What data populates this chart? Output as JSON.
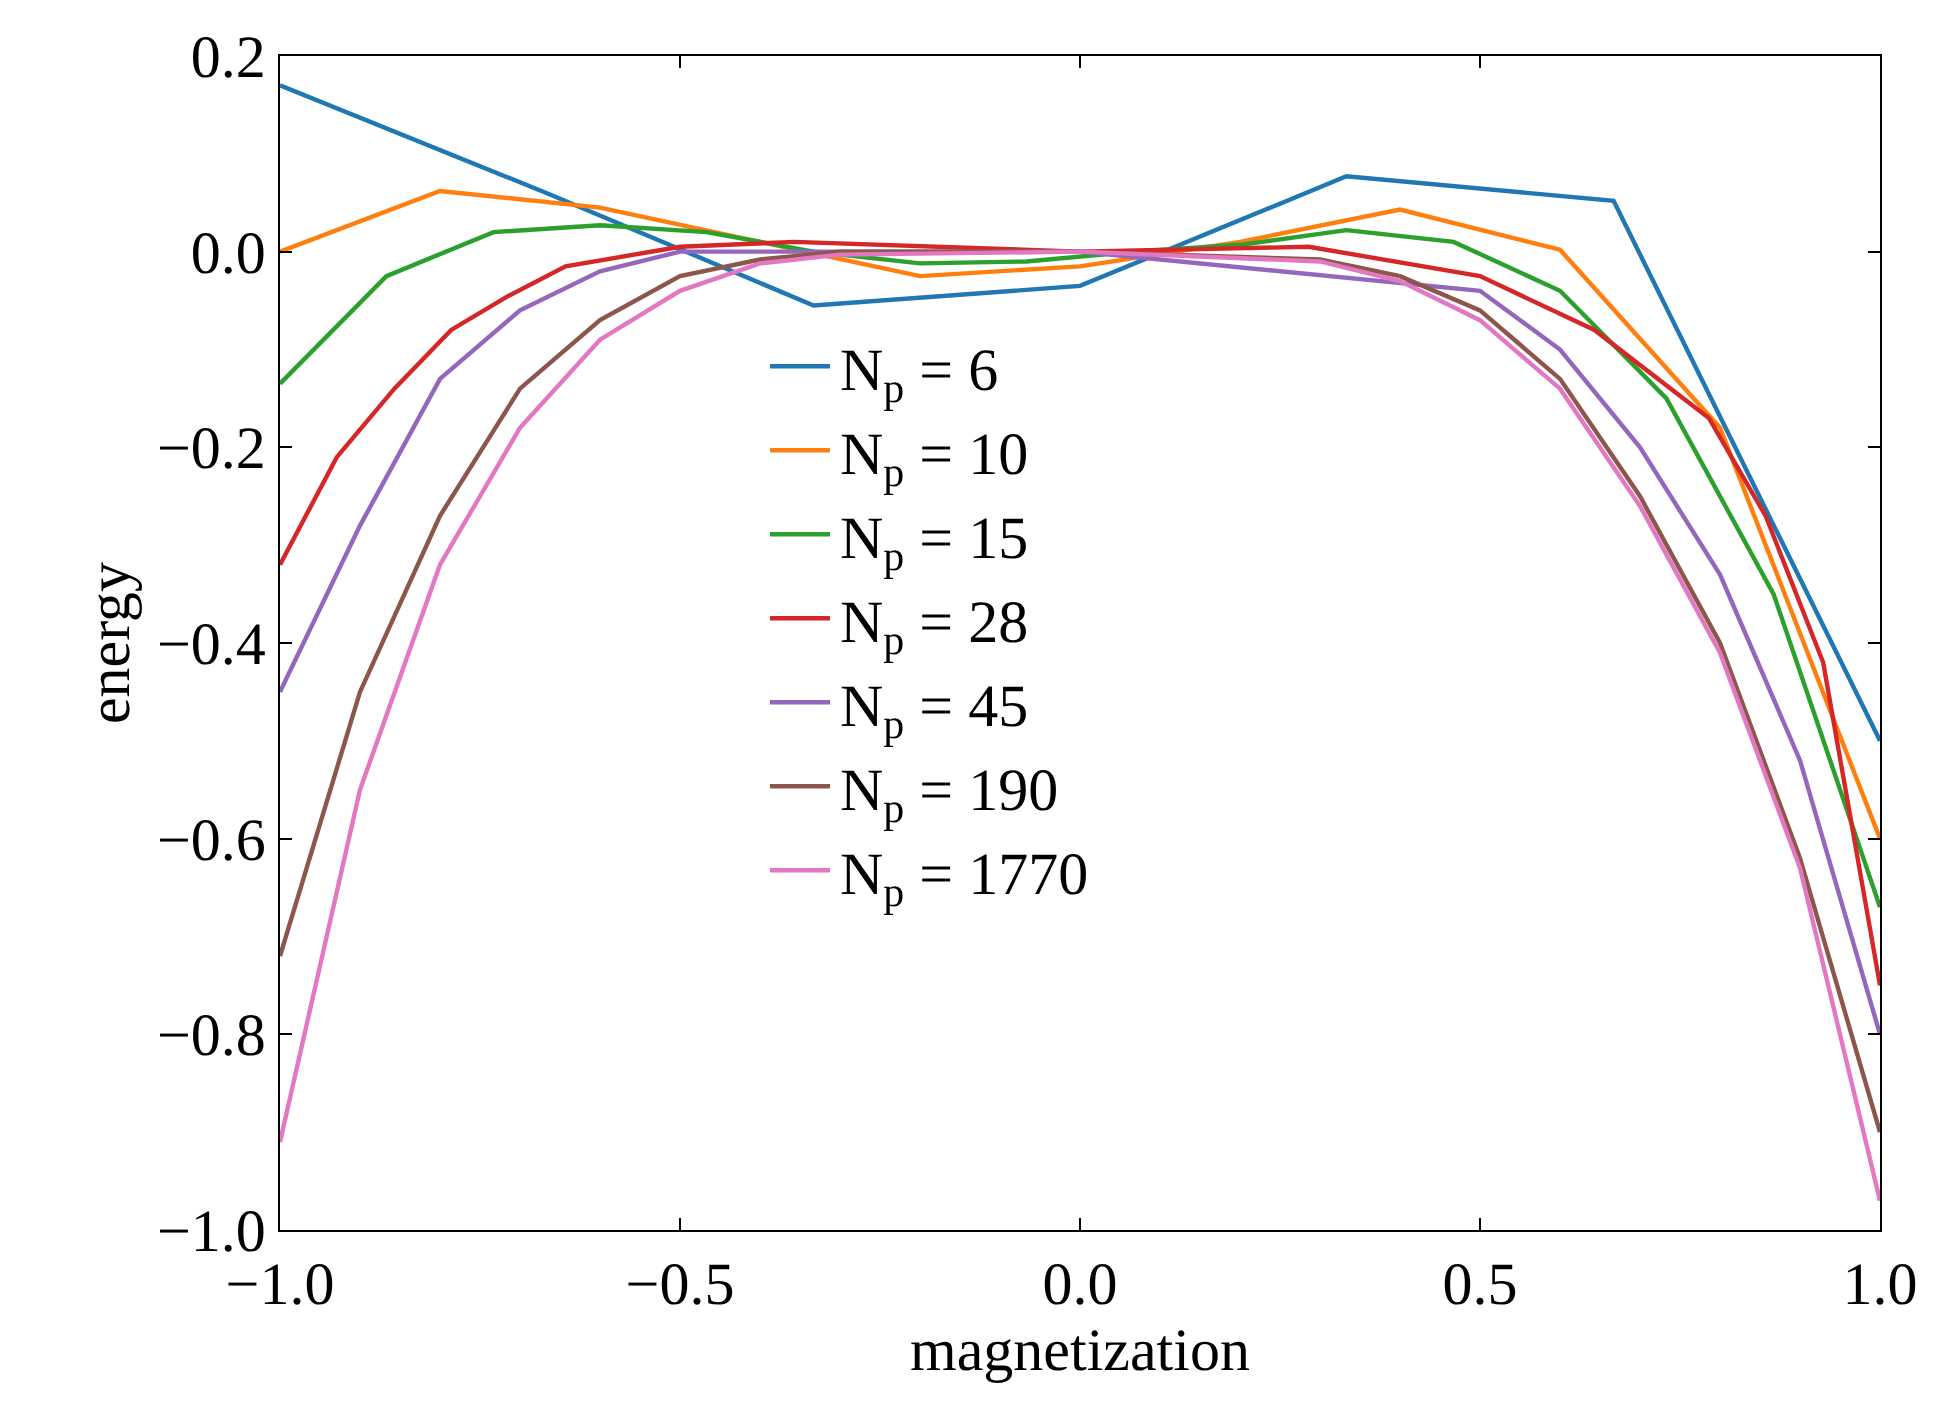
{
  "chart_data": {
    "type": "line",
    "xlabel": "magnetization",
    "ylabel": "energy",
    "xlim": [
      -1.0,
      1.0
    ],
    "ylim": [
      -1.0,
      0.2
    ],
    "xticks": [
      {
        "value": -1.0,
        "label": "−1.0"
      },
      {
        "value": -0.5,
        "label": "−0.5"
      },
      {
        "value": 0.0,
        "label": "0.0"
      },
      {
        "value": 0.5,
        "label": "0.5"
      },
      {
        "value": 1.0,
        "label": "1.0"
      }
    ],
    "yticks": [
      {
        "value": -1.0,
        "label": "−1.0"
      },
      {
        "value": -0.8,
        "label": "−0.8"
      },
      {
        "value": -0.6,
        "label": "−0.6"
      },
      {
        "value": -0.4,
        "label": "−0.4"
      },
      {
        "value": -0.2,
        "label": "−0.2"
      },
      {
        "value": 0.0,
        "label": "0.0"
      },
      {
        "value": 0.2,
        "label": "0.2"
      }
    ],
    "legend": "center",
    "marker": "none",
    "line_style": "solid",
    "series": [
      {
        "name": "N$_{p}$ = 6",
        "color": "#1f77b4",
        "x": [
          -1,
          -0.667,
          -0.333,
          0,
          0.333,
          0.667,
          1
        ],
        "values": [
          0.17,
          0.06,
          -0.055,
          -0.035,
          0.077,
          0.052,
          -0.5
        ]
      },
      {
        "name": "N$_{p}$ = 10",
        "color": "#ff7f0e",
        "x": [
          -1,
          -0.8,
          -0.6,
          -0.4,
          -0.2,
          0,
          0.2,
          0.4,
          0.6,
          0.8,
          1
        ],
        "values": [
          0.0,
          0.062,
          0.045,
          0.01,
          -0.025,
          -0.015,
          0.01,
          0.043,
          0.002,
          -0.18,
          -0.6
        ]
      },
      {
        "name": "N$_{p}$ = 15",
        "color": "#2ca02c",
        "x": [
          -1,
          -0.867,
          -0.733,
          -0.6,
          -0.467,
          -0.333,
          -0.2,
          -0.067,
          0.067,
          0.2,
          0.333,
          0.467,
          0.6,
          0.733,
          0.867,
          1
        ],
        "values": [
          -0.135,
          -0.025,
          0.02,
          0.027,
          0.02,
          0.0,
          -0.012,
          -0.01,
          0.0,
          0.007,
          0.022,
          0.01,
          -0.04,
          -0.15,
          -0.35,
          -0.67
        ]
      },
      {
        "name": "N$_{p}$ = 28",
        "color": "#d62728",
        "x": [
          -1,
          -0.929,
          -0.857,
          -0.786,
          -0.714,
          -0.643,
          -0.5,
          -0.357,
          0,
          0.286,
          0.5,
          0.643,
          0.786,
          0.857,
          0.929,
          1
        ],
        "values": [
          -0.32,
          -0.21,
          -0.14,
          -0.08,
          -0.045,
          -0.015,
          0.005,
          0.01,
          0.0,
          0.005,
          -0.025,
          -0.08,
          -0.17,
          -0.27,
          -0.42,
          -0.75
        ]
      },
      {
        "name": "N$_{p}$ = 45",
        "color": "#9467bd",
        "x": [
          -1,
          -0.9,
          -0.8,
          -0.7,
          -0.6,
          -0.5,
          0,
          0.5,
          0.6,
          0.7,
          0.8,
          0.9,
          1
        ],
        "values": [
          -0.45,
          -0.28,
          -0.13,
          -0.06,
          -0.02,
          0.0,
          0.0,
          -0.04,
          -0.1,
          -0.2,
          -0.33,
          -0.52,
          -0.8
        ]
      },
      {
        "name": "N$_{p}$ = 190",
        "color": "#8c564b",
        "x": [
          -1,
          -0.9,
          -0.8,
          -0.7,
          -0.6,
          -0.5,
          -0.4,
          -0.3,
          0,
          0.3,
          0.4,
          0.5,
          0.6,
          0.7,
          0.8,
          0.9,
          1
        ],
        "values": [
          -0.72,
          -0.45,
          -0.27,
          -0.14,
          -0.07,
          -0.025,
          -0.008,
          0.0,
          0.0,
          -0.008,
          -0.025,
          -0.06,
          -0.13,
          -0.25,
          -0.4,
          -0.62,
          -0.9
        ]
      },
      {
        "name": "N$_{p}$ = 1770",
        "color": "#e377c2",
        "x": [
          -1,
          -0.9,
          -0.8,
          -0.7,
          -0.6,
          -0.5,
          -0.4,
          -0.3,
          0,
          0.3,
          0.4,
          0.5,
          0.6,
          0.7,
          0.8,
          0.9,
          1
        ],
        "values": [
          -0.91,
          -0.55,
          -0.32,
          -0.18,
          -0.09,
          -0.04,
          -0.012,
          -0.003,
          0.0,
          -0.01,
          -0.03,
          -0.07,
          -0.14,
          -0.26,
          -0.41,
          -0.63,
          -0.97
        ]
      }
    ]
  }
}
